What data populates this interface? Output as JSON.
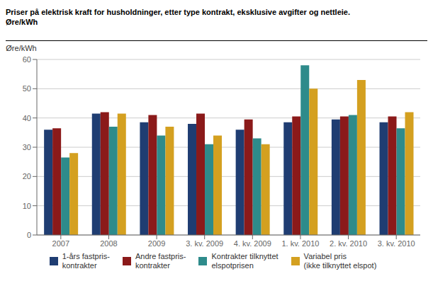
{
  "chart_data": {
    "type": "bar",
    "title": "Priser på elektrisk kraft for husholdninger, etter type kontrakt, eksklusive avgifter og nettleie.",
    "subtitle": "Øre/kWh",
    "y_label": "Øre/kWh",
    "categories": [
      "2007",
      "2008",
      "2009",
      "3. kv. 2009",
      "4. kv. 2009",
      "1. kv. 2010",
      "2. kv. 2010",
      "3. kv. 2010"
    ],
    "series": [
      {
        "name": "1-års fastpris-\nkontrakter",
        "color": "#1f3d72",
        "values": [
          36,
          41.5,
          38.5,
          38,
          36,
          38.5,
          39.5,
          38.5
        ]
      },
      {
        "name": "Andre fastpris-\nkontrakter",
        "color": "#8b1a1a",
        "values": [
          36.5,
          42,
          41,
          41.5,
          39.5,
          40.5,
          40.5,
          40.5
        ]
      },
      {
        "name": "Kontrakter tilknyttet\nelspotprisen",
        "color": "#2e8b8b",
        "values": [
          26.5,
          37,
          34,
          31,
          33,
          58,
          41,
          36.5
        ]
      },
      {
        "name": "Variabel pris\n(ikke tilknyttet elspot)",
        "color": "#d4a020",
        "values": [
          28,
          41.5,
          37,
          34,
          31,
          50,
          53,
          42
        ]
      }
    ],
    "ylim": [
      0,
      60
    ],
    "yticks": [
      0,
      10,
      20,
      30,
      40,
      50,
      60
    ],
    "grid": true
  }
}
